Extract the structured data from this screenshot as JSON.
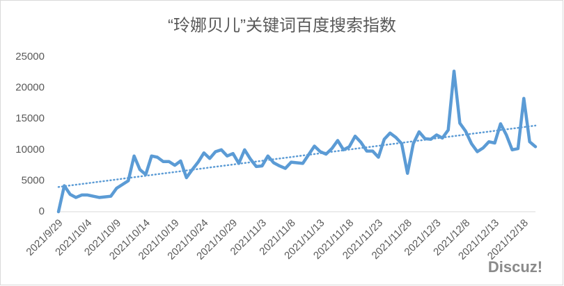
{
  "chart_data": {
    "type": "line",
    "title": "“玲娜贝儿”关键词百度搜索指数",
    "watermark": "Discuz!",
    "categories": [
      "2021/9/29",
      null,
      null,
      null,
      null,
      "2021/10/4",
      null,
      null,
      null,
      null,
      "2021/10/9",
      null,
      null,
      null,
      null,
      "2021/10/14",
      null,
      null,
      null,
      null,
      "2021/10/19",
      null,
      null,
      null,
      null,
      "2021/10/24",
      null,
      null,
      null,
      null,
      "2021/10/29",
      null,
      null,
      null,
      null,
      "2021/11/3",
      null,
      null,
      null,
      null,
      "2021/11/8",
      null,
      null,
      null,
      null,
      "2021/11/13",
      null,
      null,
      null,
      null,
      "2021/11/18",
      null,
      null,
      null,
      null,
      "2021/11/23",
      null,
      null,
      null,
      null,
      "2021/11/28",
      null,
      null,
      null,
      null,
      "2021/12/3",
      null,
      null,
      null,
      null,
      "2021/12/8",
      null,
      null,
      null,
      null,
      "2021/12/13",
      null,
      null,
      null,
      null,
      "2021/12/18",
      null,
      null
    ],
    "values": [
      0,
      4200,
      2800,
      2300,
      2700,
      2700,
      2500,
      2300,
      2400,
      2500,
      3800,
      4400,
      5000,
      9000,
      6800,
      6000,
      9000,
      8800,
      8100,
      8100,
      7500,
      8200,
      5500,
      6800,
      8000,
      9500,
      8600,
      9700,
      10000,
      9000,
      9400,
      7800,
      10000,
      8500,
      7300,
      7400,
      9000,
      7900,
      7400,
      7000,
      8000,
      7900,
      7800,
      9200,
      10600,
      9700,
      9300,
      10200,
      11500,
      10000,
      10500,
      12200,
      11200,
      9800,
      9800,
      8800,
      11700,
      12700,
      12000,
      11000,
      6200,
      11000,
      12900,
      11800,
      11700,
      12400,
      11900,
      13200,
      22700,
      14300,
      13000,
      11000,
      9700,
      10300,
      11300,
      11100,
      14200,
      12400,
      10000,
      10200,
      18300,
      11300,
      10500
    ],
    "color": "#5b9bd5",
    "trendline": true,
    "grid": false,
    "ylim": [
      0,
      25000
    ],
    "yticks": [
      0,
      5000,
      10000,
      15000,
      20000,
      25000
    ]
  }
}
